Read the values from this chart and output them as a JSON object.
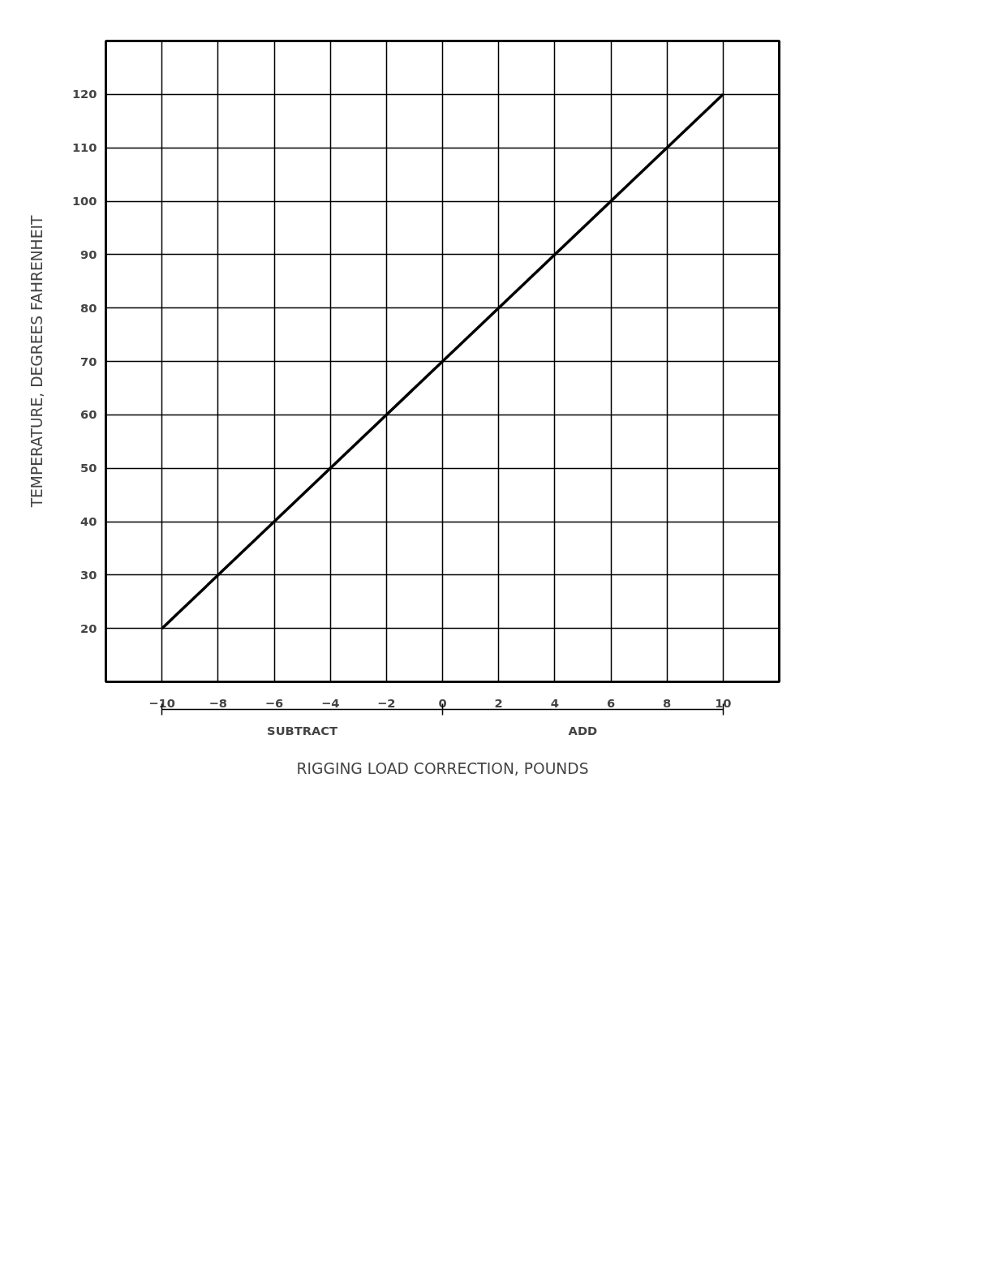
{
  "chart_data": {
    "type": "line",
    "xlabel": "RIGGING LOAD CORRECTION, POUNDS",
    "ylabel": "TEMPERATURE, DEGREES FAHRENHEIT",
    "x": [
      -10,
      10
    ],
    "values": [
      20,
      120
    ],
    "color": "#000000",
    "xlim": [
      -12,
      12
    ],
    "ylim": [
      10,
      130
    ],
    "xticks": [
      -10,
      -8,
      -6,
      -4,
      -2,
      0,
      2,
      4,
      6,
      8,
      10
    ],
    "yticks": [
      20,
      30,
      40,
      50,
      60,
      70,
      80,
      90,
      100,
      110,
      120
    ],
    "grid": true,
    "marker": "none",
    "line_style": "solid",
    "annotations": [
      "SUBTRACT",
      "ADD"
    ]
  }
}
